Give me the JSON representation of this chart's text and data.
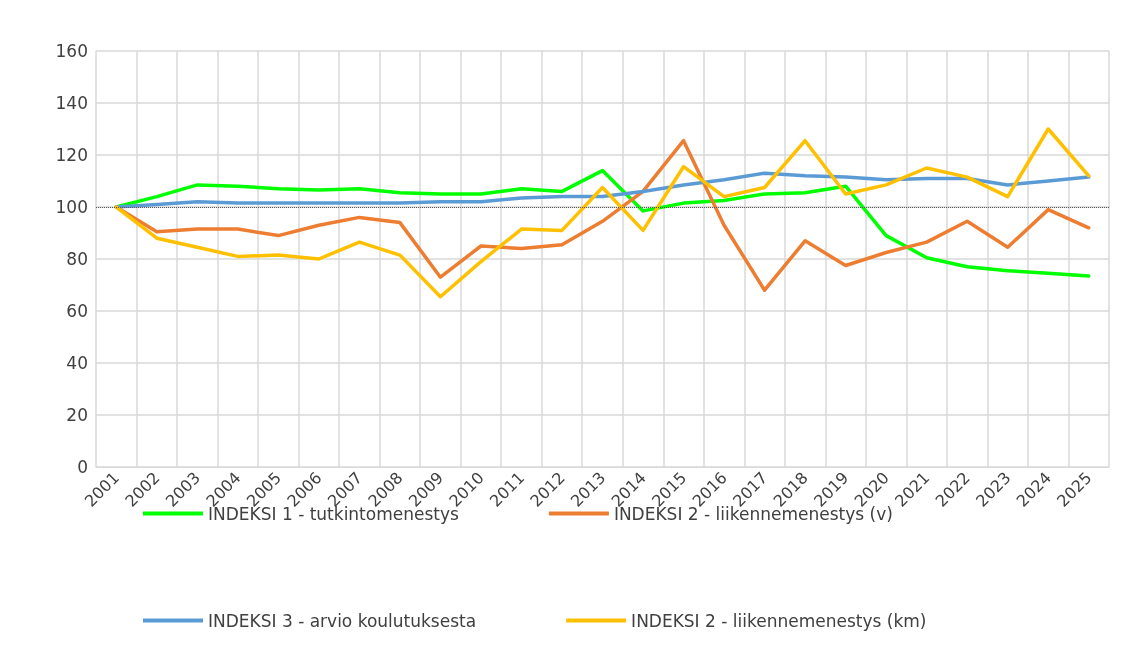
{
  "chart_data": {
    "type": "line",
    "categories": [
      "2001",
      "2002",
      "2003",
      "2004",
      "2005",
      "2006",
      "2007",
      "2008",
      "2009",
      "2010",
      "2011",
      "2012",
      "2013",
      "2014",
      "2015",
      "2016",
      "2017",
      "2018",
      "2019",
      "2020",
      "2021",
      "2022",
      "2023",
      "2024",
      "2025"
    ],
    "series": [
      {
        "name": "INDEKSI 1 - tutkintomenestys",
        "color": "#00ff00",
        "values": [
          100,
          104,
          108.5,
          108,
          107,
          106.5,
          107,
          105.5,
          105,
          105,
          107,
          106,
          114,
          98.5,
          101.5,
          102.5,
          105,
          105.5,
          108,
          89,
          80.5,
          77,
          75.5,
          74.5,
          73.5
        ]
      },
      {
        "name": "INDEKSI 2 - liikennemenestys (v)",
        "color": "#ed7d31",
        "values": [
          100,
          90.5,
          91.5,
          91.5,
          89,
          93,
          96,
          94,
          73,
          85,
          84,
          85.5,
          94.5,
          106,
          125.5,
          93,
          68,
          87,
          77.5,
          82.5,
          86.5,
          94.5,
          84.5,
          99,
          92
        ]
      },
      {
        "name": "INDEKSI 3 - arvio koulutuksesta",
        "color": "#5b9bd5",
        "values": [
          100,
          101,
          102,
          101.5,
          101.5,
          101.5,
          101.5,
          101.5,
          102,
          102,
          103.5,
          104,
          104,
          106,
          108.5,
          110.5,
          113,
          112,
          111.5,
          110.5,
          111,
          111,
          108.5,
          110,
          111.5
        ]
      },
      {
        "name": "INDEKSI 2 - liikennemenestys (km)",
        "color": "#ffc000",
        "values": [
          100,
          88,
          84.5,
          81,
          81.5,
          80,
          86.5,
          81.5,
          65.5,
          79,
          91.5,
          91,
          107.5,
          91,
          115.5,
          104,
          107.5,
          125.5,
          105,
          108.5,
          115,
          111.5,
          104,
          130,
          112
        ]
      }
    ],
    "ylim": [
      0,
      160
    ],
    "yticks": [
      0,
      20,
      40,
      60,
      80,
      100,
      120,
      140,
      160
    ],
    "grid": true,
    "legend": "bottom",
    "marker": "none",
    "line_style": "solid",
    "ref_lines": [
      {
        "axis": "y",
        "value": 100,
        "color": "#595959",
        "line_style": "dotted"
      }
    ]
  }
}
